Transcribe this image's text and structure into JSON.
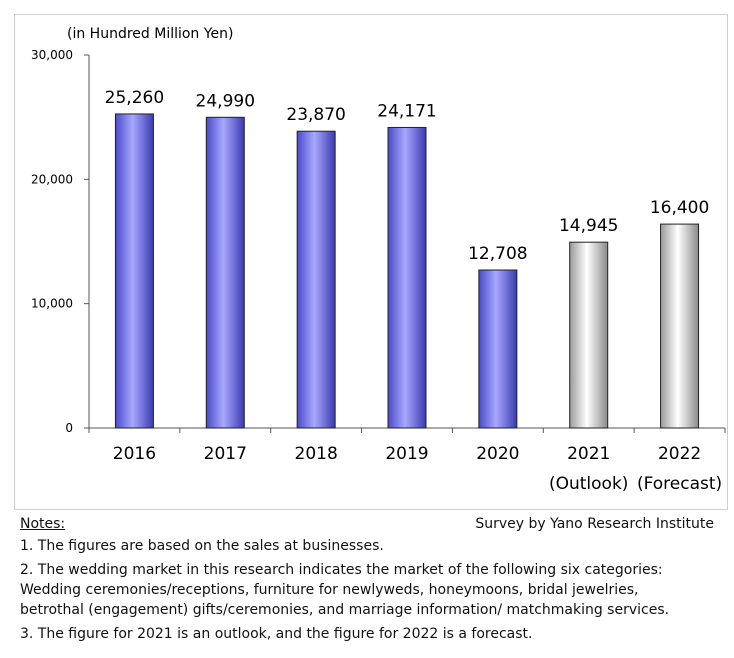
{
  "chart_data": {
    "type": "bar",
    "unit_label": "(in Hundred Million Yen)",
    "categories": [
      "2016",
      "2017",
      "2018",
      "2019",
      "2020",
      "2021",
      "2022"
    ],
    "category_sublabels": [
      "",
      "",
      "",
      "",
      "",
      "(Outlook)",
      "(Forecast)"
    ],
    "values": [
      25260,
      24990,
      23870,
      24171,
      12708,
      14945,
      16400
    ],
    "value_labels": [
      "25,260",
      "24,990",
      "23,870",
      "24,171",
      "12,708",
      "14,945",
      "16,400"
    ],
    "bar_kinds": [
      "actual",
      "actual",
      "actual",
      "actual",
      "actual",
      "projection",
      "projection"
    ],
    "ylim": [
      0,
      30000
    ],
    "yticks": [
      0,
      10000,
      20000,
      30000
    ],
    "ytick_labels": [
      "0",
      "10,000",
      "20,000",
      "30,000"
    ],
    "grid": false,
    "colors": {
      "actual": "#8080ee",
      "projection": "#d8d8d8"
    }
  },
  "notes": {
    "title": "Notes:",
    "lines": [
      "1. The figures are based on the sales at businesses.",
      "2. The wedding market in this research indicates the market of the following six categories:",
      "Wedding ceremonies/receptions, furniture for newlyweds, honeymoons, bridal jewelries,",
      "betrothal (engagement) gifts/ceremonies, and marriage information/ matchmaking services.",
      "3. The figure for 2021 is an outlook, and the figure for 2022 is a forecast."
    ]
  },
  "source": "Survey by Yano Research Institute"
}
